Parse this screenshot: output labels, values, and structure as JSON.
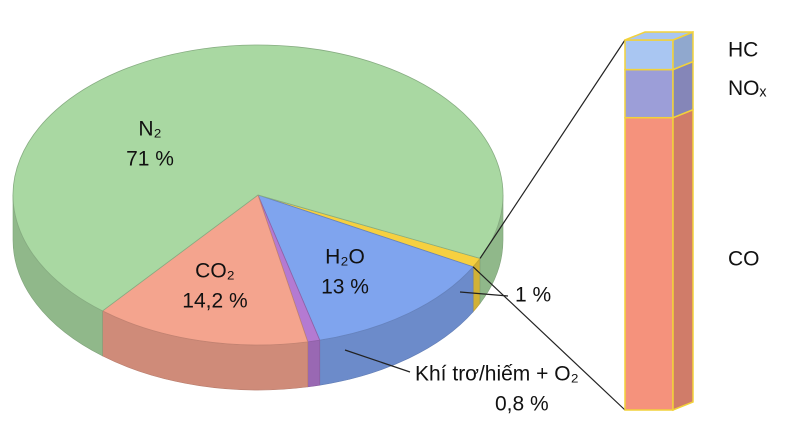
{
  "chart_data": [
    {
      "type": "pie",
      "categories": [
        "N₂",
        "CO₂",
        "H₂O",
        "Khí trơ/hiếm + O₂",
        null
      ],
      "values": [
        71,
        14.2,
        13,
        0.8,
        1
      ],
      "value_labels": [
        "71 %",
        "14,2 %",
        "13 %",
        "0,8 %",
        "1 %"
      ],
      "colors": [
        "#a9d8a2",
        "#f4a48e",
        "#7fa4ee",
        "#b47ad2",
        "#f6d040"
      ]
    },
    {
      "type": "bar",
      "categories": [
        "HC",
        "NOₓ",
        "CO"
      ],
      "values": [
        0.08,
        0.13,
        0.79
      ],
      "colors": [
        "#a9c6f2",
        "#9c9ed8",
        "#f5927c"
      ]
    }
  ]
}
